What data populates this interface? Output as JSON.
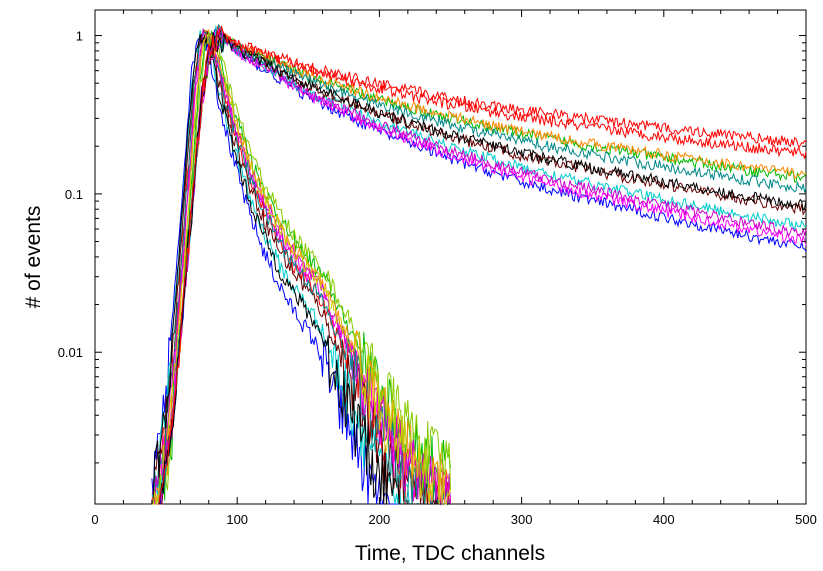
{
  "chart_data": {
    "type": "line",
    "title": "",
    "xlabel": "Time, TDC channels",
    "ylabel": "# of events",
    "xlim": [
      0,
      500
    ],
    "ylim": [
      0.0011,
      1.45
    ],
    "yscale": "log",
    "grid": false,
    "legend": "none",
    "x_ticks": [
      {
        "value": 0,
        "label": "0"
      },
      {
        "value": 100,
        "label": "100"
      },
      {
        "value": 200,
        "label": "200"
      },
      {
        "value": 300,
        "label": "300"
      },
      {
        "value": 400,
        "label": "400"
      },
      {
        "value": 500,
        "label": "500"
      }
    ],
    "y_ticks": [
      {
        "value": 1,
        "label": "1"
      },
      {
        "value": 0.1,
        "label": "0.1"
      },
      {
        "value": 0.01,
        "label": "0.01"
      }
    ],
    "colors": [
      "#ff0000",
      "#00bb00",
      "#0000ff",
      "#ff00ff",
      "#00cccc",
      "#ff8800",
      "#660000",
      "#008888",
      "#cc00cc",
      "#000000",
      "#88cc00",
      "#cccc00"
    ],
    "fast_group": {
      "description_peak_x": 78,
      "x": [
        40,
        50,
        60,
        70,
        75,
        80,
        85,
        90,
        100,
        110,
        120,
        130,
        140,
        150,
        160,
        170,
        180,
        190,
        200,
        210,
        220,
        230,
        240,
        250
      ],
      "y": [
        0.001,
        0.003,
        0.03,
        0.5,
        1.0,
        0.95,
        0.7,
        0.45,
        0.22,
        0.12,
        0.075,
        0.05,
        0.036,
        0.028,
        0.021,
        0.013,
        0.0085,
        0.0055,
        0.0035,
        0.0025,
        0.0018,
        0.0014,
        0.0012,
        0.0011
      ],
      "series": [
        {
          "color_index": 0,
          "shift": 0,
          "scale": 1.0
        },
        {
          "color_index": 1,
          "shift": 3,
          "scale": 1.08
        },
        {
          "color_index": 2,
          "shift": -3,
          "scale": 0.85
        },
        {
          "color_index": 3,
          "shift": 1,
          "scale": 1.02
        },
        {
          "color_index": 4,
          "shift": -2,
          "scale": 0.92
        },
        {
          "color_index": 5,
          "shift": 2,
          "scale": 1.05
        },
        {
          "color_index": 6,
          "shift": -1,
          "scale": 0.97
        },
        {
          "color_index": 7,
          "shift": 0,
          "scale": 1.0
        },
        {
          "color_index": 8,
          "shift": 1,
          "scale": 1.03
        },
        {
          "color_index": 9,
          "shift": -2,
          "scale": 0.9
        },
        {
          "color_index": 10,
          "shift": 4,
          "scale": 1.1
        },
        {
          "color_index": 11,
          "shift": 2,
          "scale": 1.04
        }
      ]
    },
    "slow_group": {
      "x": [
        45,
        55,
        65,
        75,
        80,
        85,
        88,
        90,
        100,
        150,
        200,
        250,
        300,
        350,
        400,
        450,
        500
      ],
      "y": [
        0.001,
        0.004,
        0.04,
        0.4,
        0.75,
        0.97,
        1.0,
        0.97,
        0.82,
        0.48,
        0.32,
        0.23,
        0.175,
        0.14,
        0.115,
        0.095,
        0.08
      ],
      "series": [
        {
          "color_index": 0,
          "decay": 0.68
        },
        {
          "color_index": 1,
          "decay": 0.82
        },
        {
          "color_index": 2,
          "decay": 1.22
        },
        {
          "color_index": 3,
          "decay": 1.18
        },
        {
          "color_index": 4,
          "decay": 1.1
        },
        {
          "color_index": 5,
          "decay": 0.8
        },
        {
          "color_index": 6,
          "decay": 1.0
        },
        {
          "color_index": 7,
          "decay": 0.88
        },
        {
          "color_index": 8,
          "decay": 1.14
        },
        {
          "color_index": 9,
          "decay": 0.98
        },
        {
          "color_index": 0,
          "decay": 0.62
        }
      ]
    }
  }
}
